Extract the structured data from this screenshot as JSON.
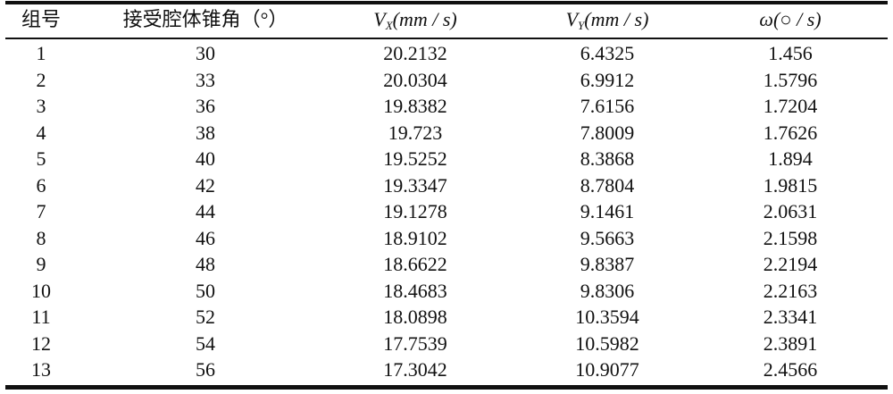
{
  "table": {
    "headers": [
      {
        "main": "组号"
      },
      {
        "main": "接受腔体锥角（°）"
      },
      {
        "main": "V",
        "sub": "X",
        "rest": "(mm / s)"
      },
      {
        "main": "V",
        "sub": "Y",
        "rest": "(mm / s)"
      },
      {
        "main": "ω",
        "rest": "(○ / s)"
      }
    ],
    "rows": [
      [
        1,
        30,
        20.2132,
        6.4325,
        1.456
      ],
      [
        2,
        33,
        20.0304,
        6.9912,
        1.5796
      ],
      [
        3,
        36,
        19.8382,
        7.6156,
        1.7204
      ],
      [
        4,
        38,
        19.723,
        7.8009,
        1.7626
      ],
      [
        5,
        40,
        19.5252,
        8.3868,
        1.894
      ],
      [
        6,
        42,
        19.3347,
        8.7804,
        1.9815
      ],
      [
        7,
        44,
        19.1278,
        9.1461,
        2.0631
      ],
      [
        8,
        46,
        18.9102,
        9.5663,
        2.1598
      ],
      [
        9,
        48,
        18.6622,
        9.8387,
        2.2194
      ],
      [
        10,
        50,
        18.4683,
        9.8306,
        2.2163
      ],
      [
        11,
        52,
        18.0898,
        10.3594,
        2.3341
      ],
      [
        12,
        54,
        17.7539,
        10.5982,
        2.3891
      ],
      [
        13,
        56,
        17.3042,
        10.9077,
        2.4566
      ]
    ]
  }
}
